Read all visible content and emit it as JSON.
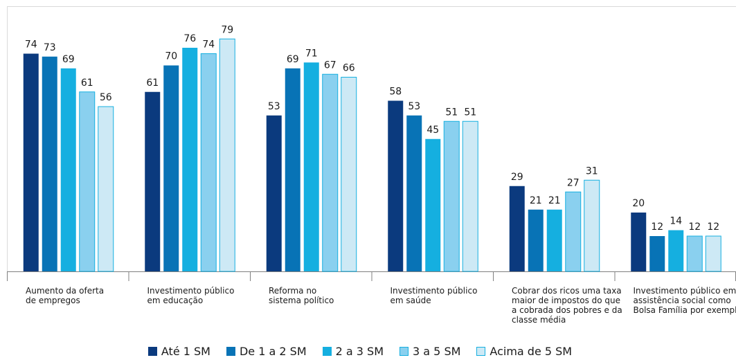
{
  "chart_data": {
    "type": "bar",
    "title": "",
    "xlabel": "",
    "ylabel": "",
    "ylim": [
      0,
      80
    ],
    "grid": false,
    "legend_position": "bottom",
    "categories": [
      [
        "Aumento da oferta",
        "de empregos"
      ],
      [
        "Investimento público",
        "em educação"
      ],
      [
        "Reforma no",
        "sistema político"
      ],
      [
        "Investimento público",
        "em saúde"
      ],
      [
        "Cobrar dos ricos uma taxa",
        "maior de impostos do que",
        "a cobrada dos pobres e da",
        "classe média"
      ],
      [
        "Investimento público em",
        "assistência social como",
        "Bolsa Família por exemplo"
      ]
    ],
    "series": [
      {
        "name": "Até 1 SM",
        "color": "#0b3a7e",
        "values": [
          74,
          61,
          53,
          58,
          29,
          20
        ]
      },
      {
        "name": "De 1 a 2 SM",
        "color": "#0873b6",
        "values": [
          73,
          70,
          69,
          53,
          21,
          12
        ]
      },
      {
        "name": "2 a 3 SM",
        "color": "#15afe0",
        "values": [
          69,
          76,
          71,
          45,
          21,
          14
        ]
      },
      {
        "name": "3 a 5 SM",
        "color": "#8ad0ef",
        "values": [
          61,
          74,
          67,
          51,
          27,
          12
        ]
      },
      {
        "name": "Acima de 5 SM",
        "color": "#cde9f5",
        "values": [
          56,
          79,
          66,
          51,
          31,
          12
        ]
      }
    ]
  }
}
